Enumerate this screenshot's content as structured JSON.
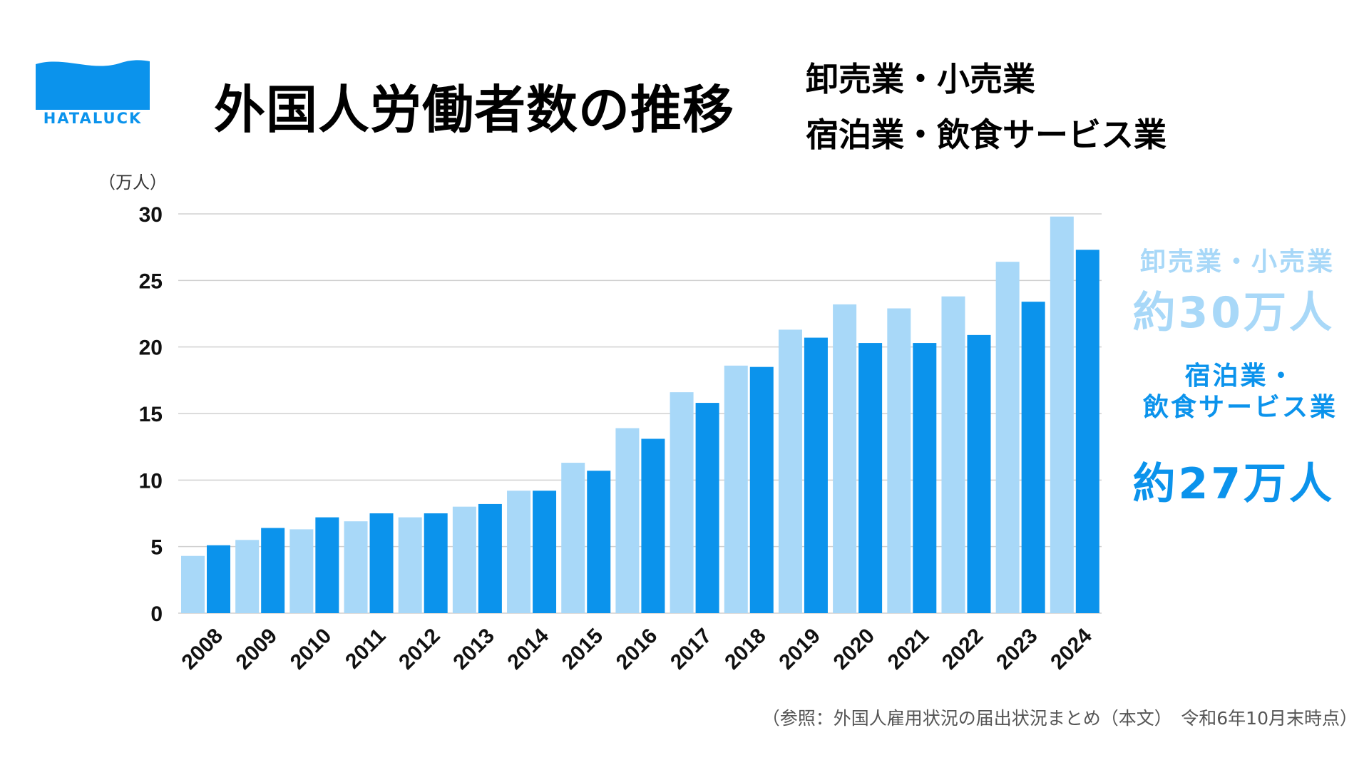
{
  "logo": {
    "text": "HATALUCK",
    "icon": "wave-flag-icon"
  },
  "title": "外国人労働者数の推移",
  "subtitle": {
    "line1": "卸売業・小売業",
    "line2": "宿泊業・飲食サービス業"
  },
  "unit_label": "（万人）",
  "colors": {
    "series_a": "#a8d8f8",
    "series_b": "#0b93ec",
    "grid": "#d0d0d0",
    "brand": "#0b93ec"
  },
  "side_labels": {
    "a_label": "卸売業・小売業",
    "a_value": "約30万人",
    "b_label_line1": "宿泊業・",
    "b_label_line2": "飲食サービス業",
    "b_value": "約27万人"
  },
  "source": "（参照：外国人雇用状況の届出状況まとめ（本文）　令和6年10月末時点）",
  "chart_data": {
    "type": "bar",
    "title": "外国人労働者数の推移",
    "ylabel": "（万人）",
    "xlabel": "",
    "ylim": [
      0,
      30
    ],
    "yticks": [
      0,
      5,
      10,
      15,
      20,
      25,
      30
    ],
    "grid": true,
    "categories": [
      "2008",
      "2009",
      "2010",
      "2011",
      "2012",
      "2013",
      "2014",
      "2015",
      "2016",
      "2017",
      "2018",
      "2019",
      "2020",
      "2021",
      "2022",
      "2023",
      "2024"
    ],
    "series": [
      {
        "name": "卸売業・小売業",
        "values": [
          4.3,
          5.5,
          6.3,
          6.9,
          7.2,
          8.0,
          9.2,
          11.3,
          13.9,
          16.6,
          18.6,
          21.3,
          23.2,
          22.9,
          23.8,
          26.4,
          29.8
        ]
      },
      {
        "name": "宿泊業・飲食サービス業",
        "values": [
          5.1,
          6.4,
          7.2,
          7.5,
          7.5,
          8.2,
          9.2,
          10.7,
          13.1,
          15.8,
          18.5,
          20.7,
          20.3,
          20.3,
          20.9,
          23.4,
          27.3
        ]
      }
    ]
  }
}
